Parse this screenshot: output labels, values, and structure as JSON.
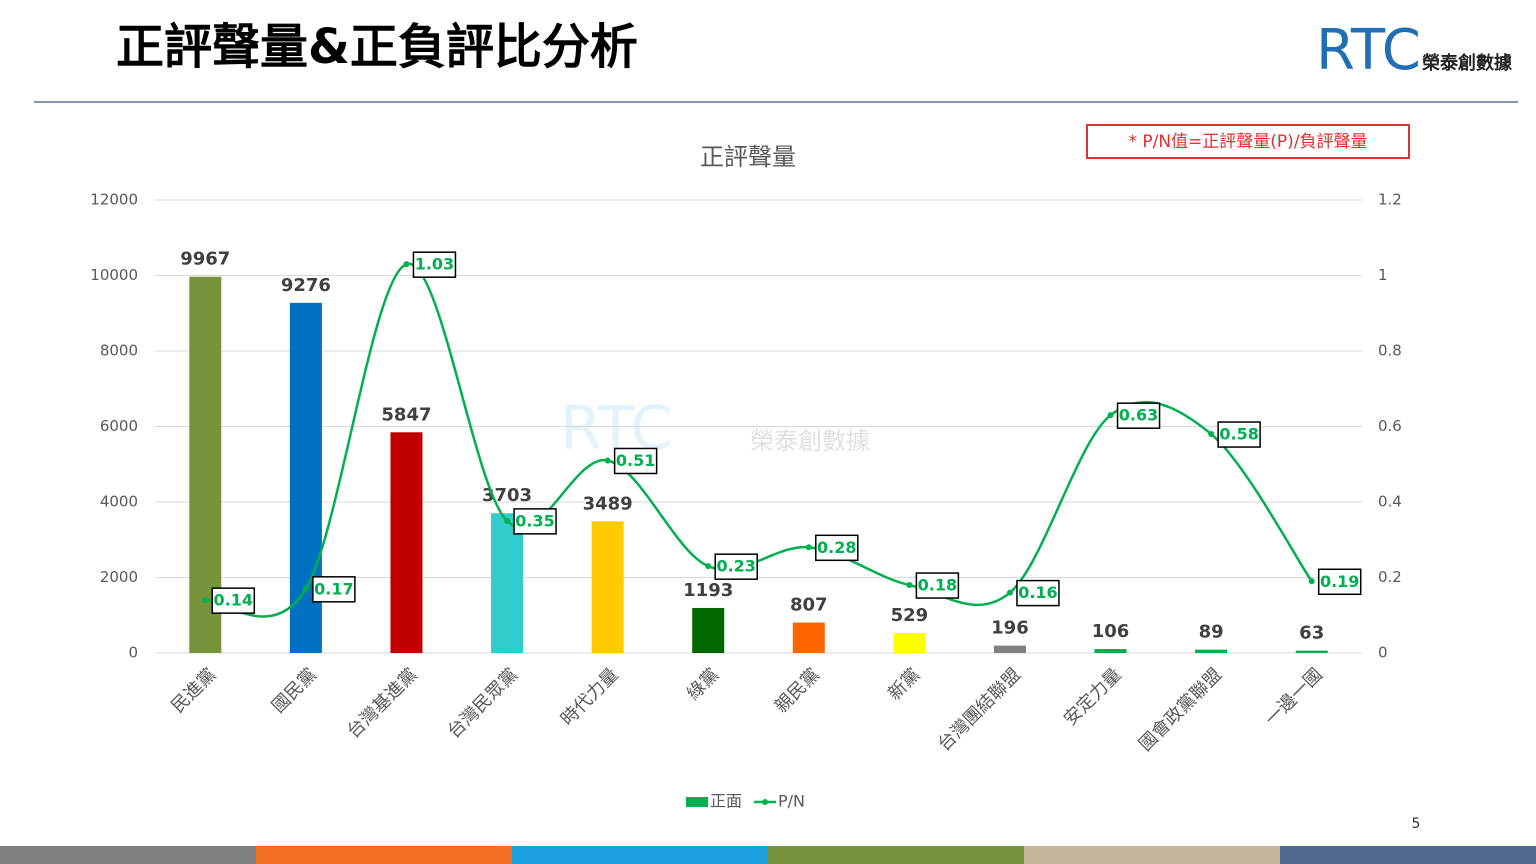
{
  "header": {
    "title": "正評聲量&正負評比分析",
    "logo_text": "RTC",
    "logo_subtitle": "榮泰創數據"
  },
  "note": "* P/N值=正評聲量(P)/負評聲量",
  "watermark": {
    "logo_text": "RTC",
    "subtitle": "榮泰創數據"
  },
  "chart_data": {
    "type": "bar",
    "title": "正評聲量",
    "categories": [
      "民進黨",
      "國民黨",
      "台灣基進黨",
      "台灣民眾黨",
      "時代力量",
      "綠黨",
      "親民黨",
      "新黨",
      "台灣團結聯盟",
      "安定力量",
      "國會政黨聯盟",
      "一邊一國"
    ],
    "series": [
      {
        "name": "正面",
        "color": "#00b050",
        "colors": [
          "#77933c",
          "#0070c0",
          "#c00000",
          "#33cccc",
          "#ffcc00",
          "#006600",
          "#ff6600",
          "#ffff00",
          "#808080",
          "#00b050",
          "#00b050",
          "#00b050"
        ],
        "values": [
          9967,
          9276,
          5847,
          3703,
          3489,
          1193,
          807,
          529,
          196,
          106,
          89,
          63
        ]
      },
      {
        "name": "P/N",
        "type": "line",
        "smooth": true,
        "axis": "y2",
        "color": "#00b050",
        "values": [
          0.14,
          0.17,
          1.03,
          0.35,
          0.51,
          0.23,
          0.28,
          0.18,
          0.16,
          0.63,
          0.58,
          0.19
        ]
      }
    ],
    "ylim": [
      0,
      12000
    ],
    "yticks": [
      0,
      2000,
      4000,
      6000,
      8000,
      10000,
      12000
    ],
    "y2lim": [
      0,
      1.2
    ],
    "y2ticks": [
      0,
      0.2,
      0.4,
      0.6,
      0.8,
      1,
      1.2
    ],
    "grid": true,
    "legend": "bottom"
  },
  "page_number": 5
}
